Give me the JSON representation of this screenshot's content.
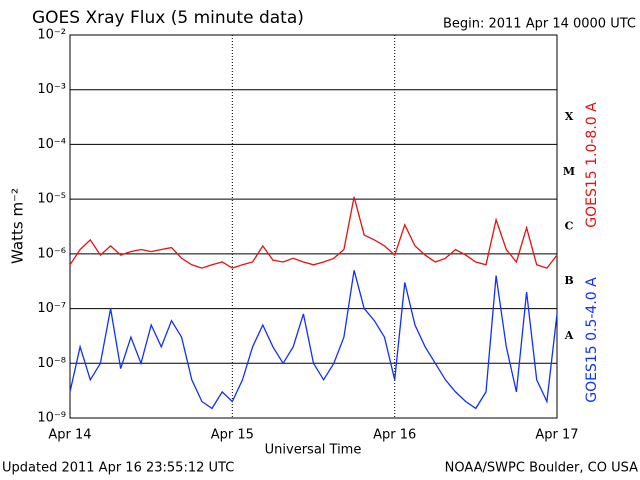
{
  "chart_data": {
    "type": "line",
    "title": "GOES Xray Flux (5 minute data)",
    "subtitle": "Begin:  2011 Apr 14 0000 UTC",
    "xlabel": "Universal Time",
    "ylabel": "Watts m⁻²",
    "footer_left": "Updated 2011 Apr 16 23:55:12 UTC",
    "footer_right": "NOAA/SWPC Boulder, CO USA",
    "flare_classes": [
      "A",
      "B",
      "C",
      "M",
      "X"
    ],
    "log_y": true,
    "grid": true,
    "xlim": [
      0,
      72
    ],
    "xticks": [
      {
        "value": 0,
        "label": "Apr 14"
      },
      {
        "value": 24,
        "label": "Apr 15"
      },
      {
        "value": 48,
        "label": "Apr 16"
      },
      {
        "value": 72,
        "label": "Apr 17"
      }
    ],
    "ylim": [
      1e-09,
      0.01
    ],
    "yticks": [
      {
        "value": 1e-09,
        "label": "10⁻⁹"
      },
      {
        "value": 1e-08,
        "label": "10⁻⁸"
      },
      {
        "value": 1e-07,
        "label": "10⁻⁷"
      },
      {
        "value": 1e-06,
        "label": "10⁻⁶"
      },
      {
        "value": 1e-05,
        "label": "10⁻⁵"
      },
      {
        "value": 0.0001,
        "label": "10⁻⁴"
      },
      {
        "value": 0.001,
        "label": "10⁻³"
      },
      {
        "value": 0.01,
        "label": "10⁻²"
      }
    ],
    "x": [
      0,
      1.5,
      3,
      4.5,
      6,
      7.5,
      9,
      10.5,
      12,
      13.5,
      15,
      16.5,
      18,
      19.5,
      21,
      22.5,
      24,
      25.5,
      27,
      28.5,
      30,
      31.5,
      33,
      34.5,
      36,
      37.5,
      39,
      40.5,
      42,
      43.5,
      45,
      46.5,
      48,
      49.5,
      51,
      52.5,
      54,
      55.5,
      57,
      58.5,
      60,
      61.5,
      63,
      64.5,
      66,
      67.5,
      69,
      70.5,
      72
    ],
    "series": [
      {
        "name": "GOES15 1.0-8.0 A",
        "color": "#e81010",
        "values": [
          6.3e-07,
          1.2e-06,
          1.8e-06,
          9.5e-07,
          1.4e-06,
          9.5e-07,
          1.1e-06,
          1.2e-06,
          1.1e-06,
          1.2e-06,
          1.3e-06,
          8.3e-07,
          6.3e-07,
          5.5e-07,
          6.3e-07,
          7.1e-07,
          5.5e-07,
          6.3e-07,
          7.1e-07,
          1.4e-06,
          7.7e-07,
          7.1e-07,
          8.3e-07,
          7.1e-07,
          6.3e-07,
          7.1e-07,
          8.3e-07,
          1.2e-06,
          1.1e-05,
          2.2e-06,
          1.8e-06,
          1.4e-06,
          9.5e-07,
          3.4e-06,
          1.4e-06,
          9.5e-07,
          7.1e-07,
          8.3e-07,
          1.2e-06,
          9.5e-07,
          7.1e-07,
          6.3e-07,
          4.2e-06,
          1.2e-06,
          7.1e-07,
          3e-06,
          6.3e-07,
          5.5e-07,
          9.5e-07
        ]
      },
      {
        "name": "GOES15 0.5-4.0 A",
        "color": "#1030ff",
        "values": [
          3e-09,
          2e-08,
          5e-09,
          1e-08,
          1e-07,
          8e-09,
          3e-08,
          1e-08,
          5e-08,
          2e-08,
          6e-08,
          3e-08,
          5e-09,
          2e-09,
          1.5e-09,
          3e-09,
          2e-09,
          5e-09,
          2e-08,
          5e-08,
          2e-08,
          1e-08,
          2e-08,
          8e-08,
          1e-08,
          5e-09,
          1e-08,
          3e-08,
          5e-07,
          1e-07,
          6e-08,
          3e-08,
          5e-09,
          3e-07,
          5e-08,
          2e-08,
          1e-08,
          5e-09,
          3e-09,
          2e-09,
          1.5e-09,
          3e-09,
          4e-07,
          2e-08,
          3e-09,
          2e-07,
          5e-09,
          2e-09,
          8e-08
        ]
      }
    ]
  }
}
